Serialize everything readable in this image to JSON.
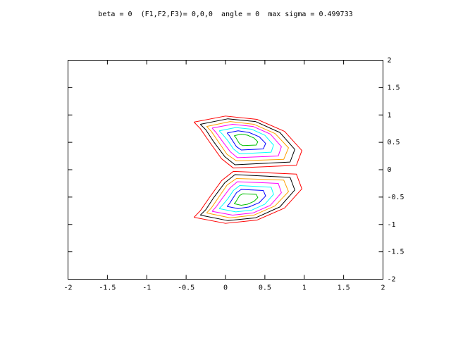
{
  "chart_data": {
    "type": "contour",
    "title": "beta = 0  (F1,F2,F3)= 0,0,0  angle = 0  max sigma = 0.499733",
    "xlim": [
      -2,
      2
    ],
    "ylim": [
      -2,
      2
    ],
    "xticks": [
      -2,
      -1.5,
      -1,
      -0.5,
      0,
      0.5,
      1,
      1.5,
      2
    ],
    "yticks": [
      -2,
      -1.5,
      -1,
      -0.5,
      0,
      0.5,
      1,
      1.5,
      2
    ],
    "series": [
      {
        "color": "#ff0000",
        "x": [
          -0.4,
          0,
          0.4,
          0.75,
          0.97,
          0.9,
          0.1,
          -0.05,
          -0.2,
          -0.32,
          -0.4,
          null,
          -0.4,
          0,
          0.4,
          0.75,
          0.97,
          0.9,
          0.1,
          -0.05,
          -0.2,
          -0.32,
          -0.4
        ],
        "y": [
          0.87,
          0.98,
          0.92,
          0.7,
          0.35,
          0.08,
          0.03,
          0.2,
          0.5,
          0.75,
          0.87,
          null,
          -0.87,
          -0.98,
          -0.92,
          -0.7,
          -0.35,
          -0.08,
          -0.03,
          -0.2,
          -0.5,
          -0.75,
          -0.87
        ]
      },
      {
        "color": "#000000",
        "x": [
          -0.32,
          0.03,
          0.38,
          0.69,
          0.88,
          0.82,
          0.12,
          -0.01,
          -0.15,
          -0.25,
          -0.32,
          null,
          -0.32,
          0.03,
          0.38,
          0.69,
          0.88,
          0.82,
          0.12,
          -0.01,
          -0.15,
          -0.25,
          -0.32
        ],
        "y": [
          0.83,
          0.93,
          0.88,
          0.68,
          0.37,
          0.14,
          0.09,
          0.24,
          0.51,
          0.73,
          0.83,
          null,
          -0.83,
          -0.93,
          -0.88,
          -0.68,
          -0.37,
          -0.14,
          -0.09,
          -0.24,
          -0.51,
          -0.73,
          -0.83
        ]
      },
      {
        "color": "#ffa000",
        "x": [
          -0.24,
          0.06,
          0.36,
          0.63,
          0.8,
          0.74,
          0.14,
          0.02,
          -0.09,
          -0.18,
          -0.24,
          null,
          -0.24,
          0.06,
          0.36,
          0.63,
          0.8,
          0.74,
          0.14,
          0.02,
          -0.09,
          -0.18,
          -0.24
        ],
        "y": [
          0.79,
          0.88,
          0.83,
          0.66,
          0.4,
          0.19,
          0.16,
          0.28,
          0.51,
          0.7,
          0.79,
          null,
          -0.79,
          -0.88,
          -0.83,
          -0.66,
          -0.4,
          -0.19,
          -0.16,
          -0.28,
          -0.51,
          -0.7,
          -0.79
        ]
      },
      {
        "color": "#ff00ff",
        "x": [
          -0.17,
          0.09,
          0.35,
          0.57,
          0.71,
          0.67,
          0.15,
          0.06,
          -0.04,
          -0.12,
          -0.17,
          null,
          -0.17,
          0.09,
          0.35,
          0.57,
          0.71,
          0.67,
          0.15,
          0.06,
          -0.04,
          -0.12,
          -0.17
        ],
        "y": [
          0.76,
          0.83,
          0.79,
          0.65,
          0.42,
          0.25,
          0.22,
          0.33,
          0.52,
          0.68,
          0.76,
          null,
          -0.76,
          -0.83,
          -0.79,
          -0.65,
          -0.42,
          -0.25,
          -0.22,
          -0.33,
          -0.52,
          -0.68,
          -0.76
        ]
      },
      {
        "color": "#00ffff",
        "x": [
          -0.08,
          0.13,
          0.33,
          0.5,
          0.61,
          0.58,
          0.18,
          0.1,
          0.03,
          -0.04,
          -0.08,
          null,
          -0.08,
          0.13,
          0.33,
          0.5,
          0.61,
          0.58,
          0.18,
          0.1,
          0.03,
          -0.04,
          -0.08
        ],
        "y": [
          0.71,
          0.77,
          0.74,
          0.63,
          0.45,
          0.32,
          0.29,
          0.38,
          0.53,
          0.65,
          0.71,
          null,
          -0.71,
          -0.77,
          -0.74,
          -0.63,
          -0.45,
          -0.32,
          -0.29,
          -0.38,
          -0.53,
          -0.65,
          -0.71
        ]
      },
      {
        "color": "#0000ff",
        "x": [
          0.02,
          0.16,
          0.3,
          0.43,
          0.51,
          0.48,
          0.2,
          0.14,
          0.09,
          0.05,
          0.02,
          null,
          0.02,
          0.16,
          0.3,
          0.43,
          0.51,
          0.48,
          0.2,
          0.14,
          0.09,
          0.05,
          0.02
        ],
        "y": [
          0.67,
          0.71,
          0.68,
          0.6,
          0.48,
          0.38,
          0.36,
          0.42,
          0.53,
          0.62,
          0.67,
          null,
          -0.67,
          -0.71,
          -0.68,
          -0.6,
          -0.48,
          -0.38,
          -0.36,
          -0.42,
          -0.53,
          -0.62,
          -0.67
        ]
      },
      {
        "color": "#00c000",
        "x": [
          0.11,
          0.2,
          0.28,
          0.36,
          0.41,
          0.39,
          0.22,
          0.18,
          0.15,
          0.13,
          0.11,
          null,
          0.11,
          0.2,
          0.28,
          0.36,
          0.41,
          0.39,
          0.22,
          0.18,
          0.15,
          0.13,
          0.11
        ],
        "y": [
          0.62,
          0.65,
          0.63,
          0.58,
          0.51,
          0.45,
          0.44,
          0.47,
          0.54,
          0.59,
          0.62,
          null,
          -0.62,
          -0.65,
          -0.63,
          -0.58,
          -0.51,
          -0.45,
          -0.44,
          -0.47,
          -0.54,
          -0.59,
          -0.62
        ]
      }
    ]
  }
}
